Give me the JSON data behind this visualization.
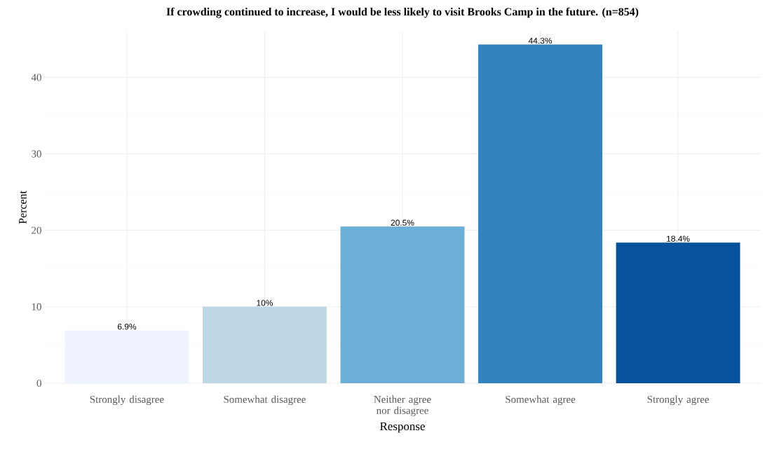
{
  "chart_data": {
    "type": "bar",
    "title": "If crowding continued to increase, I would be less likely to visit Brooks Camp in the future. (n=854)",
    "xlabel": "Response",
    "ylabel": "Percent",
    "categories": [
      "Strongly disagree",
      "Somewhat disagree",
      "Neither agree nor disagree",
      "Somewhat agree",
      "Strongly agree"
    ],
    "values": [
      6.9,
      10,
      20.5,
      44.3,
      18.4
    ],
    "colors": [
      "#eff3ff",
      "#bdd7e7",
      "#6baed6",
      "#3182bd",
      "#08519c"
    ],
    "value_labels": [
      "6.9%",
      "10%",
      "20.5%",
      "44.3%",
      "18.4%"
    ],
    "ylim": [
      0,
      46
    ],
    "yticks": [
      0,
      10,
      20,
      30,
      40
    ],
    "grid": true
  }
}
